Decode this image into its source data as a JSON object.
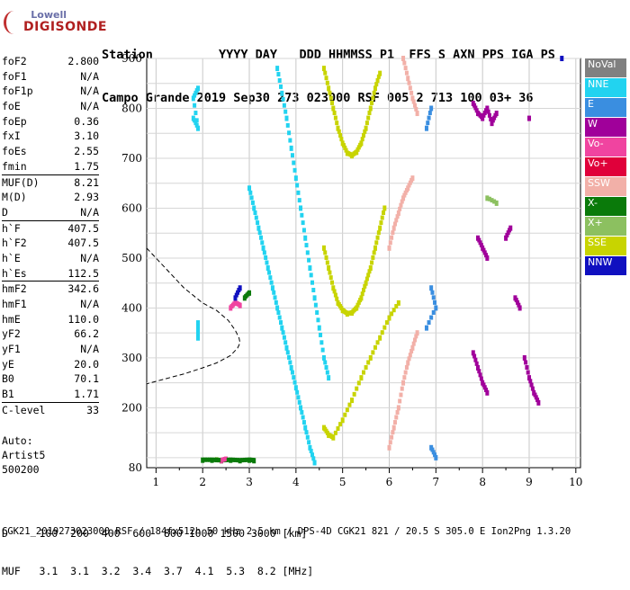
{
  "logo": {
    "line1": "Lowell",
    "line2": "DIGISONDE"
  },
  "header": {
    "row1": "Station         YYYY DAY   DDD HHMMSS P1  FFS S AXN PPS IGA PS",
    "row2": "Campo Grande 2019 Sep30 273 023000 RSF 005 2 713 100 03+ 36"
  },
  "params": [
    [
      {
        "name": "foF2",
        "value": "2.800"
      },
      {
        "name": "foF1",
        "value": "N/A"
      },
      {
        "name": "foF1p",
        "value": "N/A"
      },
      {
        "name": "foE",
        "value": "N/A"
      },
      {
        "name": "foEp",
        "value": "0.36"
      },
      {
        "name": "fxI",
        "value": "3.10"
      },
      {
        "name": "foEs",
        "value": "2.55"
      },
      {
        "name": "fmin",
        "value": "1.75"
      }
    ],
    [
      {
        "name": "MUF(D)",
        "value": "8.21"
      },
      {
        "name": "M(D)",
        "value": "2.93"
      },
      {
        "name": "D",
        "value": "N/A"
      }
    ],
    [
      {
        "name": "h`F",
        "value": "407.5"
      },
      {
        "name": "h`F2",
        "value": "407.5"
      },
      {
        "name": "h`E",
        "value": "N/A"
      },
      {
        "name": "h`Es",
        "value": "112.5"
      }
    ],
    [
      {
        "name": "hmF2",
        "value": "342.6"
      },
      {
        "name": "hmF1",
        "value": "N/A"
      },
      {
        "name": "hmE",
        "value": "110.0"
      },
      {
        "name": "yF2",
        "value": "66.2"
      },
      {
        "name": "yF1",
        "value": "N/A"
      },
      {
        "name": "yE",
        "value": "20.0"
      },
      {
        "name": "B0",
        "value": "70.1"
      },
      {
        "name": "B1",
        "value": "1.71"
      }
    ],
    [
      {
        "name": "C-level",
        "value": "33"
      }
    ]
  ],
  "auto": {
    "line1": "Auto:",
    "line2": "Artist5",
    "line3": "500200"
  },
  "legend": [
    {
      "label": "NoVal",
      "color": "#808080"
    },
    {
      "label": "NNE",
      "color": "#22d3f0"
    },
    {
      "label": "E",
      "color": "#3a8ee0"
    },
    {
      "label": "W",
      "color": "#a0009a"
    },
    {
      "label": "Vo-",
      "color": "#f044a0"
    },
    {
      "label": "Vo+",
      "color": "#e0003a"
    },
    {
      "label": "SSW",
      "color": "#f2b0a8"
    },
    {
      "label": "X-",
      "color": "#0a7a0a"
    },
    {
      "label": "X+",
      "color": "#8cc060"
    },
    {
      "label": "SSE",
      "color": "#c8d400"
    },
    {
      "label": "NNW",
      "color": "#1010c0"
    }
  ],
  "muf_table": {
    "row1": "D     100  200  400  600  800 1000 1500 3000 [km]",
    "row2": "MUF   3.1  3.1  3.2  3.4  3.7  4.1  5.3  8.2 [MHz]"
  },
  "footer": "CGK21_2019273023000.RSF / 184fx512h 50 kHz 2.5 km / DPS-4D CGK21 821 / 20.5 S 305.0 E Ion2Png 1.3.20",
  "chart_data": {
    "type": "scatter",
    "title": "",
    "xlabel": "",
    "ylabel": "",
    "xlim": [
      0.8,
      10.1
    ],
    "ylim": [
      80,
      900
    ],
    "x_ticks": [
      1,
      2,
      3,
      4,
      5,
      6,
      7,
      8,
      9,
      10
    ],
    "y_ticks": [
      200,
      300,
      400,
      500,
      600,
      700,
      800,
      900
    ],
    "y_axis_labels": [
      "80",
      "200",
      "300",
      "400",
      "500",
      "600",
      "700",
      "800",
      "900"
    ],
    "grid": true,
    "series": [
      {
        "name": "SSE",
        "color": "#c8d400",
        "points": [
          [
            4.6,
            880
          ],
          [
            4.7,
            840
          ],
          [
            4.8,
            800
          ],
          [
            4.9,
            760
          ],
          [
            5.0,
            730
          ],
          [
            5.1,
            710
          ],
          [
            5.2,
            705
          ],
          [
            5.3,
            712
          ],
          [
            5.4,
            730
          ],
          [
            5.5,
            760
          ],
          [
            5.6,
            800
          ],
          [
            5.7,
            840
          ],
          [
            5.8,
            870
          ],
          [
            4.6,
            520
          ],
          [
            4.7,
            480
          ],
          [
            4.8,
            440
          ],
          [
            4.9,
            410
          ],
          [
            5.0,
            395
          ],
          [
            5.1,
            388
          ],
          [
            5.2,
            390
          ],
          [
            5.3,
            400
          ],
          [
            5.4,
            420
          ],
          [
            5.5,
            450
          ],
          [
            5.6,
            480
          ],
          [
            5.7,
            520
          ],
          [
            5.8,
            560
          ],
          [
            5.9,
            600
          ],
          [
            4.6,
            160
          ],
          [
            4.7,
            145
          ],
          [
            4.8,
            140
          ],
          [
            5.0,
            175
          ],
          [
            5.2,
            215
          ],
          [
            5.4,
            260
          ],
          [
            5.6,
            300
          ],
          [
            5.8,
            340
          ],
          [
            6.0,
            380
          ],
          [
            6.2,
            410
          ]
        ]
      },
      {
        "name": "SSW",
        "color": "#f2b0a8",
        "points": [
          [
            6.3,
            900
          ],
          [
            6.4,
            860
          ],
          [
            6.5,
            820
          ],
          [
            6.6,
            790
          ],
          [
            6.0,
            520
          ],
          [
            6.1,
            560
          ],
          [
            6.2,
            590
          ],
          [
            6.3,
            620
          ],
          [
            6.4,
            640
          ],
          [
            6.5,
            660
          ],
          [
            6.0,
            120
          ],
          [
            6.1,
            160
          ],
          [
            6.2,
            200
          ],
          [
            6.3,
            250
          ],
          [
            6.4,
            290
          ],
          [
            6.5,
            320
          ],
          [
            6.6,
            350
          ]
        ]
      },
      {
        "name": "NNE",
        "color": "#22d3f0",
        "points": [
          [
            1.8,
            780
          ],
          [
            1.9,
            760
          ],
          [
            1.8,
            820
          ],
          [
            1.9,
            840
          ],
          [
            3.0,
            640
          ],
          [
            3.1,
            600
          ],
          [
            3.2,
            560
          ],
          [
            3.3,
            520
          ],
          [
            3.4,
            480
          ],
          [
            3.5,
            440
          ],
          [
            3.6,
            400
          ],
          [
            3.7,
            360
          ],
          [
            3.8,
            320
          ],
          [
            3.9,
            280
          ],
          [
            4.0,
            240
          ],
          [
            4.1,
            200
          ],
          [
            4.2,
            160
          ],
          [
            4.3,
            120
          ],
          [
            4.4,
            90
          ],
          [
            3.6,
            880
          ],
          [
            3.7,
            830
          ],
          [
            3.8,
            780
          ],
          [
            3.9,
            720
          ],
          [
            4.0,
            660
          ],
          [
            4.1,
            600
          ],
          [
            4.2,
            540
          ],
          [
            4.3,
            480
          ],
          [
            4.4,
            420
          ],
          [
            4.5,
            360
          ],
          [
            4.6,
            300
          ],
          [
            4.7,
            260
          ],
          [
            1.9,
            340
          ],
          [
            1.9,
            370
          ]
        ]
      },
      {
        "name": "W",
        "color": "#a0009a",
        "points": [
          [
            7.8,
            810
          ],
          [
            7.9,
            790
          ],
          [
            8.0,
            780
          ],
          [
            8.1,
            800
          ],
          [
            8.2,
            770
          ],
          [
            8.3,
            790
          ],
          [
            7.9,
            540
          ],
          [
            8.0,
            520
          ],
          [
            8.1,
            500
          ],
          [
            8.5,
            540
          ],
          [
            8.6,
            560
          ],
          [
            8.7,
            420
          ],
          [
            8.8,
            400
          ],
          [
            9.0,
            780
          ],
          [
            7.8,
            310
          ],
          [
            7.9,
            280
          ],
          [
            8.0,
            250
          ],
          [
            8.1,
            230
          ],
          [
            8.9,
            300
          ],
          [
            9.0,
            260
          ],
          [
            9.1,
            230
          ],
          [
            9.2,
            210
          ]
        ]
      },
      {
        "name": "E",
        "color": "#3a8ee0",
        "points": [
          [
            6.9,
            800
          ],
          [
            6.8,
            760
          ],
          [
            6.9,
            440
          ],
          [
            7.0,
            400
          ],
          [
            6.8,
            360
          ],
          [
            6.9,
            120
          ],
          [
            7.0,
            100
          ]
        ]
      },
      {
        "name": "X-",
        "color": "#0a7a0a",
        "points": [
          [
            2.0,
            95
          ],
          [
            2.2,
            95
          ],
          [
            2.4,
            94
          ],
          [
            2.6,
            95
          ],
          [
            2.8,
            94
          ],
          [
            3.0,
            95
          ],
          [
            3.1,
            94
          ],
          [
            2.9,
            420
          ],
          [
            3.0,
            430
          ]
        ]
      },
      {
        "name": "Vo-",
        "color": "#f044a0",
        "points": [
          [
            2.6,
            400
          ],
          [
            2.7,
            410
          ],
          [
            2.8,
            405
          ],
          [
            2.4,
            94
          ],
          [
            2.5,
            97
          ]
        ]
      },
      {
        "name": "NNW",
        "color": "#1010c0",
        "points": [
          [
            9.7,
            900
          ],
          [
            2.7,
            420
          ],
          [
            2.8,
            440
          ]
        ]
      },
      {
        "name": "X+",
        "color": "#8cc060",
        "points": [
          [
            8.1,
            620
          ],
          [
            8.3,
            610
          ],
          [
            2.3,
            96
          ]
        ]
      }
    ],
    "profile_curve": [
      [
        0.8,
        520
      ],
      [
        1.2,
        480
      ],
      [
        1.6,
        440
      ],
      [
        2.0,
        410
      ],
      [
        2.3,
        395
      ],
      [
        2.55,
        375
      ],
      [
        2.7,
        355
      ],
      [
        2.78,
        340
      ],
      [
        2.8,
        330
      ],
      [
        2.75,
        320
      ],
      [
        2.6,
        305
      ],
      [
        2.3,
        290
      ],
      [
        2.0,
        280
      ],
      [
        1.6,
        268
      ],
      [
        1.2,
        258
      ],
      [
        0.8,
        248
      ]
    ],
    "scale_legend": [
      "1",
      "2",
      "3",
      "4",
      "5",
      "6",
      "7",
      "8",
      "9",
      "10"
    ]
  }
}
